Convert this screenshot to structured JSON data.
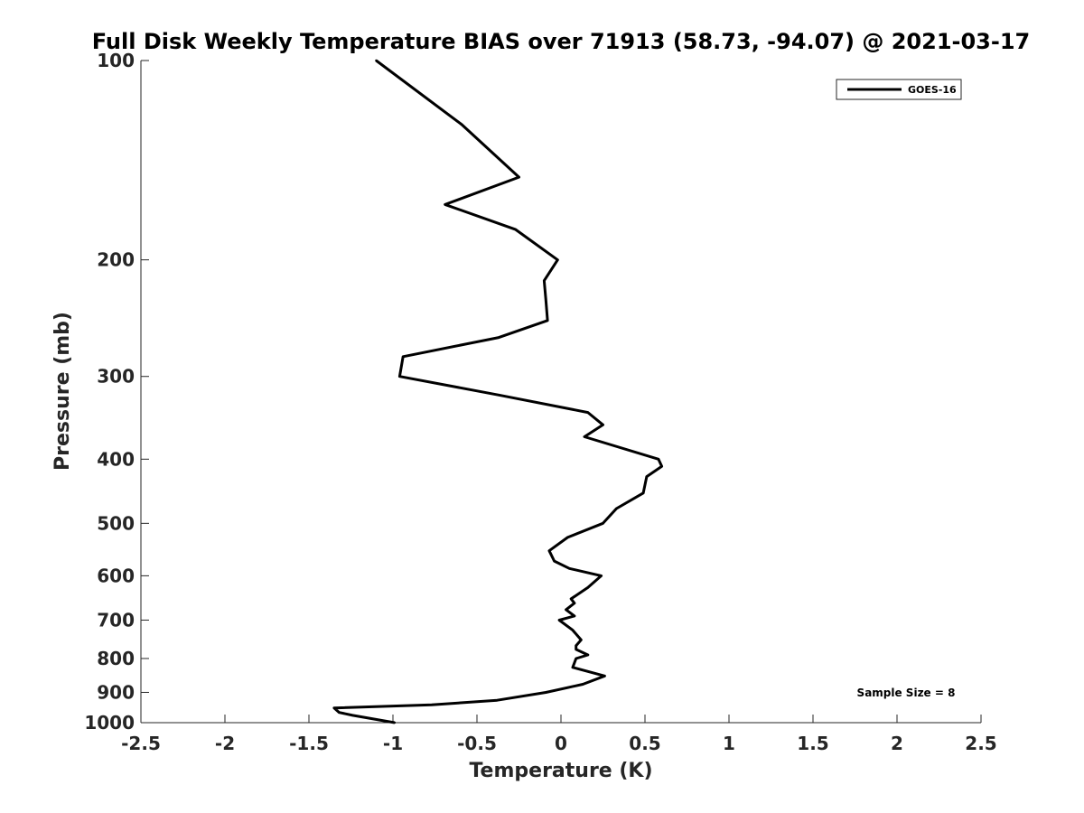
{
  "chart_data": {
    "type": "line",
    "title": "Full Disk Weekly Temperature BIAS over 71913 (58.73, -94.07) @ 2021-03-17",
    "xlabel": "Temperature (K)",
    "ylabel": "Pressure (mb)",
    "xlim": [
      -2.5,
      2.5
    ],
    "ylim": [
      100,
      1000
    ],
    "y_scale": "log",
    "y_reversed": true,
    "x_ticks": [
      -2.5,
      -2,
      -1.5,
      -1,
      -0.5,
      0,
      0.5,
      1,
      1.5,
      2,
      2.5
    ],
    "x_tick_labels": [
      "-2.5",
      "-2",
      "-1.5",
      "-1",
      "-0.5",
      "0",
      "0.5",
      "1",
      "1.5",
      "2",
      "2.5"
    ],
    "y_ticks": [
      100,
      200,
      300,
      400,
      500,
      600,
      700,
      800,
      900,
      1000
    ],
    "y_tick_labels": [
      "100",
      "200",
      "300",
      "400",
      "500",
      "600",
      "700",
      "800",
      "900",
      "1000"
    ],
    "grid": false,
    "legend_position": "top-right",
    "annotation": "Sample Size = 8",
    "series": [
      {
        "name": "GOES-16",
        "color": "#000000",
        "points": [
          {
            "p": 100,
            "t": -1.1
          },
          {
            "p": 125,
            "t": -0.59
          },
          {
            "p": 150,
            "t": -0.25
          },
          {
            "p": 165,
            "t": -0.69
          },
          {
            "p": 180,
            "t": -0.27
          },
          {
            "p": 200,
            "t": -0.02
          },
          {
            "p": 215,
            "t": -0.1
          },
          {
            "p": 230,
            "t": -0.09
          },
          {
            "p": 247,
            "t": -0.08
          },
          {
            "p": 262,
            "t": -0.37
          },
          {
            "p": 280,
            "t": -0.94
          },
          {
            "p": 300,
            "t": -0.96
          },
          {
            "p": 320,
            "t": -0.37
          },
          {
            "p": 340,
            "t": 0.16
          },
          {
            "p": 355,
            "t": 0.25
          },
          {
            "p": 370,
            "t": 0.14
          },
          {
            "p": 400,
            "t": 0.58
          },
          {
            "p": 410,
            "t": 0.6
          },
          {
            "p": 425,
            "t": 0.51
          },
          {
            "p": 450,
            "t": 0.49
          },
          {
            "p": 475,
            "t": 0.33
          },
          {
            "p": 500,
            "t": 0.25
          },
          {
            "p": 525,
            "t": 0.04
          },
          {
            "p": 550,
            "t": -0.07
          },
          {
            "p": 570,
            "t": -0.04
          },
          {
            "p": 585,
            "t": 0.05
          },
          {
            "p": 600,
            "t": 0.24
          },
          {
            "p": 625,
            "t": 0.16
          },
          {
            "p": 650,
            "t": 0.06
          },
          {
            "p": 660,
            "t": 0.08
          },
          {
            "p": 675,
            "t": 0.03
          },
          {
            "p": 690,
            "t": 0.08
          },
          {
            "p": 700,
            "t": -0.01
          },
          {
            "p": 725,
            "t": 0.07
          },
          {
            "p": 750,
            "t": 0.12
          },
          {
            "p": 765,
            "t": 0.09
          },
          {
            "p": 775,
            "t": 0.09
          },
          {
            "p": 790,
            "t": 0.16
          },
          {
            "p": 800,
            "t": 0.09
          },
          {
            "p": 825,
            "t": 0.07
          },
          {
            "p": 850,
            "t": 0.26
          },
          {
            "p": 875,
            "t": 0.13
          },
          {
            "p": 900,
            "t": -0.09
          },
          {
            "p": 925,
            "t": -0.38
          },
          {
            "p": 940,
            "t": -0.77
          },
          {
            "p": 950,
            "t": -1.35
          },
          {
            "p": 965,
            "t": -1.32
          },
          {
            "p": 975,
            "t": -1.24
          },
          {
            "p": 1000,
            "t": -0.99
          }
        ]
      }
    ]
  }
}
